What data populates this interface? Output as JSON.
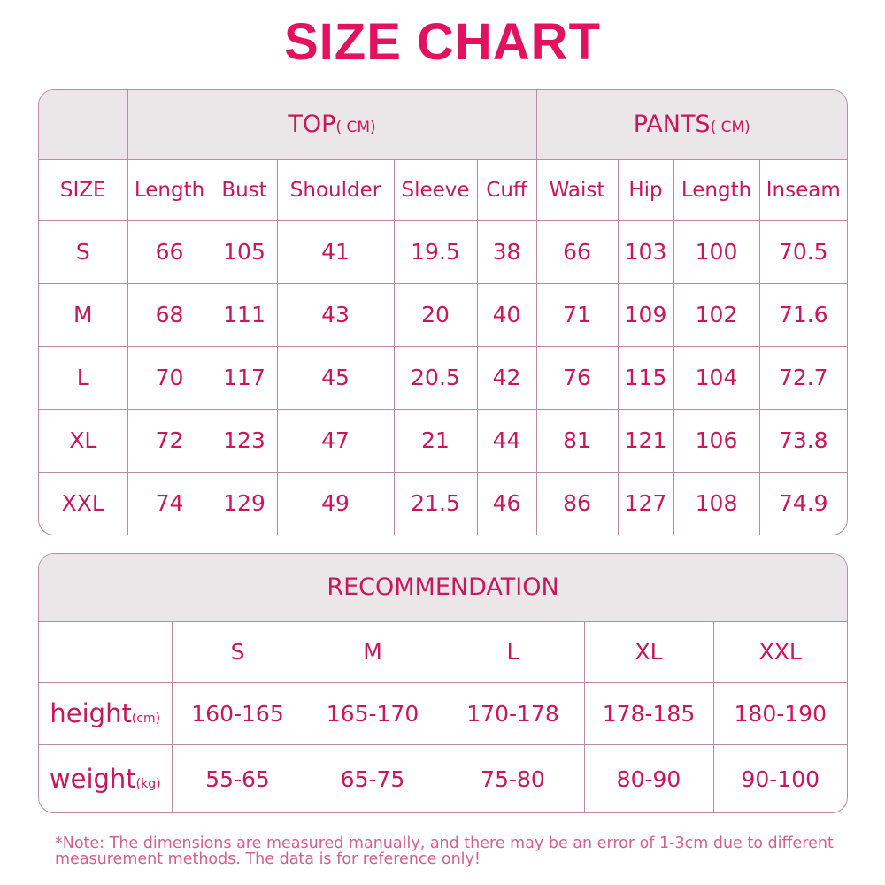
{
  "title": "SIZE CHART",
  "size_table": {
    "groups": [
      {
        "label": "TOP",
        "unit": "( CM)"
      },
      {
        "label": "PANTS",
        "unit": "( CM)"
      }
    ],
    "headers": [
      "SIZE",
      "Length",
      "Bust",
      "Shoulder",
      "Sleeve",
      "Cuff",
      "Waist",
      "Hip",
      "Length",
      "Inseam"
    ],
    "rows": [
      [
        "S",
        "66",
        "105",
        "41",
        "19.5",
        "38",
        "66",
        "103",
        "100",
        "70.5"
      ],
      [
        "M",
        "68",
        "111",
        "43",
        "20",
        "40",
        "71",
        "109",
        "102",
        "71.6"
      ],
      [
        "L",
        "70",
        "117",
        "45",
        "20.5",
        "42",
        "76",
        "115",
        "104",
        "72.7"
      ],
      [
        "XL",
        "72",
        "123",
        "47",
        "21",
        "44",
        "81",
        "121",
        "106",
        "73.8"
      ],
      [
        "XXL",
        "74",
        "129",
        "49",
        "21.5",
        "46",
        "86",
        "127",
        "108",
        "74.9"
      ]
    ]
  },
  "recommendation": {
    "title": "RECOMMENDATION",
    "sizes": [
      "S",
      "M",
      "L",
      "XL",
      "XXL"
    ],
    "rows": [
      {
        "label": "height",
        "unit": "(cm)",
        "values": [
          "160-165",
          "165-170",
          "170-178",
          "178-185",
          "180-190"
        ]
      },
      {
        "label": "weight",
        "unit": "(kg)",
        "values": [
          "55-65",
          "65-75",
          "75-80",
          "80-90",
          "90-100"
        ]
      }
    ]
  },
  "note": "*Note: The dimensions are measured manually, and there may be an error of 1-3cm due to different measurement methods. The data is for reference only!",
  "colors": {
    "title": "#e3125f",
    "text": "#c8175a",
    "border": "#b98ca3",
    "header_bg": "#ebe7e9",
    "note": "#d4608a"
  }
}
